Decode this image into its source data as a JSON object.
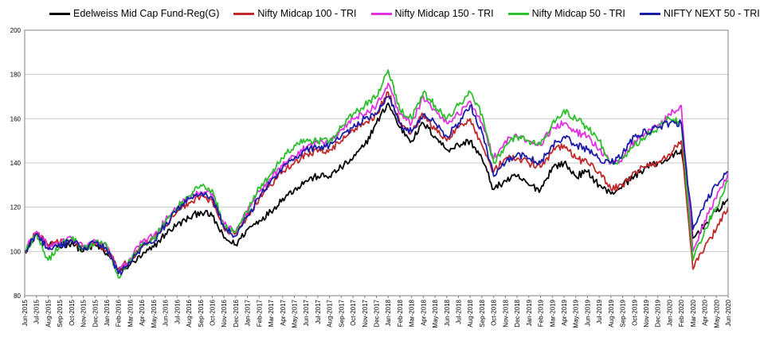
{
  "chart_data": {
    "type": "line",
    "title": "",
    "xlabel": "",
    "ylabel": "",
    "ylim": [
      80,
      200
    ],
    "yticks": [
      80,
      100,
      120,
      140,
      160,
      180,
      200
    ],
    "grid": true,
    "legend_position": "top",
    "x": [
      "Jun-2015",
      "Jul-2015",
      "Aug-2015",
      "Sep-2015",
      "Oct-2015",
      "Nov-2015",
      "Dec-2015",
      "Jan-2016",
      "Feb-2016",
      "Mar-2016",
      "Apr-2016",
      "May-2016",
      "Jun-2016",
      "Jul-2016",
      "Aug-2016",
      "Sep-2016",
      "Oct-2016",
      "Nov-2016",
      "Dec-2016",
      "Jan-2017",
      "Feb-2017",
      "Mar-2017",
      "Apr-2017",
      "May-2017",
      "Jun-2017",
      "Jul-2017",
      "Aug-2017",
      "Sep-2017",
      "Oct-2017",
      "Nov-2017",
      "Dec-2017",
      "Jan-2018",
      "Feb-2018",
      "Mar-2018",
      "Apr-2018",
      "May-2018",
      "Jun-2018",
      "Jul-2018",
      "Aug-2018",
      "Sep-2018",
      "Oct-2018",
      "Nov-2018",
      "Dec-2018",
      "Jan-2019",
      "Feb-2019",
      "Mar-2019",
      "Apr-2019",
      "May-2019",
      "Jun-2019",
      "Jul-2019",
      "Aug-2019",
      "Sep-2019",
      "Oct-2019",
      "Nov-2019",
      "Dec-2019",
      "Jan-2020",
      "Feb-2020",
      "Mar-2020",
      "Apr-2020",
      "May-2020",
      "Jun-2020"
    ],
    "series": [
      {
        "name": "Edelweiss Mid Cap Fund-Reg(G)",
        "color": "#000000",
        "values": [
          100,
          108,
          103,
          102,
          104,
          100,
          103,
          99,
          92,
          94,
          98,
          102,
          108,
          112,
          115,
          118,
          116,
          106,
          103,
          110,
          114,
          118,
          124,
          128,
          132,
          134,
          134,
          138,
          142,
          148,
          158,
          167,
          156,
          150,
          158,
          152,
          146,
          148,
          150,
          142,
          128,
          132,
          134,
          130,
          128,
          138,
          140,
          134,
          136,
          130,
          126,
          130,
          134,
          138,
          140,
          142,
          146,
          106,
          112,
          118,
          124
        ]
      },
      {
        "name": "Nifty Midcap 100 - TRI",
        "color": "#c0282a",
        "values": [
          100,
          109,
          103,
          104,
          105,
          102,
          104,
          101,
          92,
          96,
          103,
          106,
          112,
          118,
          122,
          125,
          123,
          110,
          108,
          116,
          124,
          130,
          136,
          140,
          144,
          145,
          146,
          150,
          155,
          158,
          162,
          172,
          158,
          154,
          162,
          155,
          150,
          156,
          160,
          148,
          136,
          142,
          142,
          140,
          138,
          145,
          148,
          142,
          140,
          136,
          128,
          130,
          136,
          138,
          140,
          144,
          150,
          92,
          102,
          110,
          120
        ]
      },
      {
        "name": "Nifty Midcap 150 - TRI",
        "color": "#e032e0",
        "values": [
          100,
          109,
          102,
          104,
          106,
          102,
          105,
          102,
          91,
          97,
          104,
          107,
          114,
          120,
          124,
          127,
          126,
          112,
          109,
          118,
          127,
          133,
          139,
          143,
          147,
          149,
          150,
          155,
          160,
          162,
          166,
          176,
          162,
          158,
          170,
          164,
          158,
          162,
          168,
          158,
          142,
          150,
          152,
          150,
          148,
          156,
          158,
          154,
          152,
          146,
          140,
          142,
          150,
          154,
          157,
          162,
          166,
          100,
          114,
          124,
          136
        ]
      },
      {
        "name": "Nifty Midcap 50 - TRI",
        "color": "#2dbf2d",
        "values": [
          100,
          108,
          96,
          103,
          106,
          101,
          104,
          103,
          88,
          96,
          103,
          106,
          113,
          120,
          125,
          130,
          128,
          111,
          109,
          118,
          129,
          135,
          142,
          148,
          150,
          150,
          150,
          156,
          162,
          166,
          170,
          182,
          164,
          160,
          172,
          166,
          160,
          166,
          172,
          162,
          140,
          148,
          152,
          150,
          148,
          158,
          164,
          160,
          156,
          150,
          140,
          142,
          148,
          152,
          156,
          160,
          158,
          96,
          110,
          120,
          132
        ]
      },
      {
        "name": "NIFTY NEXT 50 - TRI",
        "color": "#1c1ca8",
        "values": [
          100,
          108,
          101,
          102,
          105,
          101,
          104,
          101,
          90,
          95,
          102,
          104,
          112,
          119,
          124,
          126,
          124,
          111,
          107,
          116,
          124,
          132,
          138,
          142,
          146,
          147,
          148,
          152,
          156,
          160,
          162,
          170,
          158,
          154,
          162,
          158,
          152,
          158,
          166,
          154,
          134,
          140,
          144,
          142,
          140,
          148,
          152,
          148,
          146,
          142,
          140,
          144,
          152,
          154,
          156,
          158,
          158,
          110,
          122,
          130,
          136
        ]
      }
    ]
  }
}
